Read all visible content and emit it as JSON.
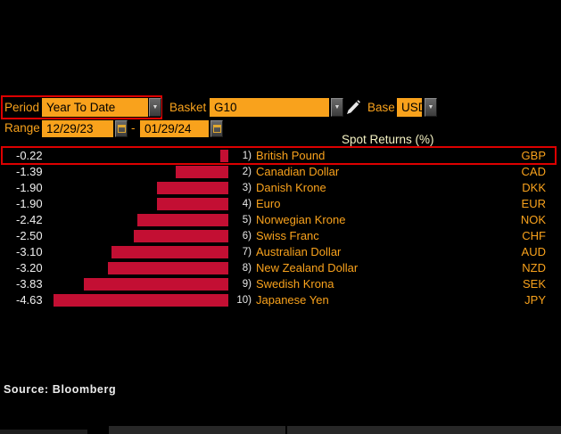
{
  "controls": {
    "period_label": "Period",
    "period_value": "Year To Date",
    "basket_label": "Basket",
    "basket_value": "G10",
    "base_label": "Base",
    "base_value": "USD",
    "range_label": "Range",
    "range_start": "12/29/23",
    "range_separator": "-",
    "range_end": "01/29/24"
  },
  "chart_data": {
    "type": "bar",
    "orientation": "horizontal",
    "title": "Spot Returns (%)",
    "xlim": [
      -5,
      0
    ],
    "bar_color": "#c30f33",
    "highlight_row_index": 0,
    "highlight_color": "#dd0000",
    "rows": [
      {
        "rank": "1)",
        "label": "British Pound",
        "code": "GBP",
        "value": -0.22
      },
      {
        "rank": "2)",
        "label": "Canadian Dollar",
        "code": "CAD",
        "value": -1.39
      },
      {
        "rank": "3)",
        "label": "Danish Krone",
        "code": "DKK",
        "value": -1.9
      },
      {
        "rank": "4)",
        "label": "Euro",
        "code": "EUR",
        "value": -1.9
      },
      {
        "rank": "5)",
        "label": "Norwegian Krone",
        "code": "NOK",
        "value": -2.42
      },
      {
        "rank": "6)",
        "label": "Swiss Franc",
        "code": "CHF",
        "value": -2.5
      },
      {
        "rank": "7)",
        "label": "Australian Dollar",
        "code": "AUD",
        "value": -3.1
      },
      {
        "rank": "8)",
        "label": "New Zealand Dollar",
        "code": "NZD",
        "value": -3.2
      },
      {
        "rank": "9)",
        "label": "Swedish Krona",
        "code": "SEK",
        "value": -3.83
      },
      {
        "rank": "10)",
        "label": "Japanese Yen",
        "code": "JPY",
        "value": -4.63
      }
    ]
  },
  "footer": {
    "source": "Source: Bloomberg"
  },
  "colors": {
    "background": "#000000",
    "amber": "#f9a21c",
    "title_yellow": "#f5f2c3",
    "bar_red": "#c30f33",
    "highlight_red": "#dd0000",
    "value_white": "#f0f0f0"
  },
  "icons": {
    "period_dropdown": "chevron-down-icon",
    "basket_dropdown": "chevron-down-icon",
    "base_dropdown": "chevron-down-icon",
    "edit": "pencil-icon",
    "calendar": "calendar-icon"
  }
}
